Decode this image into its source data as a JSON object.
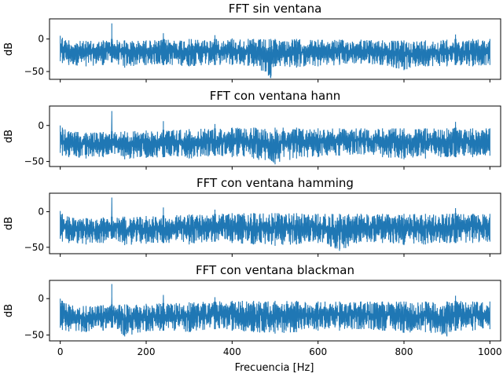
{
  "figure": {
    "xlabel": "Frecuencia [Hz]"
  },
  "chart_data": [
    {
      "type": "line",
      "title": "FFT sin ventana",
      "xlabel": "",
      "ylabel": "dB",
      "xlim": [
        -25,
        1025
      ],
      "ylim": [
        -62,
        31
      ],
      "x_ticks": [
        0,
        200,
        400,
        600,
        800,
        1000
      ],
      "y_ticks": [
        -50,
        0
      ],
      "grid": false,
      "color": "#1f77b4",
      "series": [
        {
          "x": [
            0,
            5,
            20,
            60,
            100,
            119,
            120,
            121,
            150,
            200,
            239,
            240,
            241,
            300,
            359,
            360,
            361,
            400,
            450,
            490,
            500,
            550,
            600,
            650,
            700,
            750,
            800,
            850,
            900,
            919,
            920,
            921,
            960,
            1000
          ],
          "upper": [
            5,
            2,
            -2,
            -3,
            -2,
            0,
            24,
            0,
            -2,
            -2,
            -1,
            9,
            0,
            0,
            0,
            6,
            0,
            1,
            0,
            0,
            0,
            0,
            -1,
            -1,
            -1,
            -2,
            -2,
            -2,
            -1,
            0,
            7,
            0,
            0,
            0
          ],
          "lower": [
            -34,
            -37,
            -40,
            -42,
            -40,
            -36,
            -30,
            -36,
            -44,
            -40,
            -40,
            -34,
            -40,
            -42,
            -40,
            -40,
            -40,
            -40,
            -42,
            -60,
            -42,
            -44,
            -42,
            -40,
            -38,
            -40,
            -48,
            -42,
            -42,
            -40,
            -38,
            -40,
            -42,
            -40
          ]
        }
      ]
    },
    {
      "type": "line",
      "title": "FFT con ventana hann",
      "xlabel": "",
      "ylabel": "dB",
      "xlim": [
        -25,
        1025
      ],
      "ylim": [
        -57,
        27
      ],
      "x_ticks": [
        0,
        200,
        400,
        600,
        800,
        1000
      ],
      "y_ticks": [
        -50,
        0
      ],
      "grid": false,
      "color": "#1f77b4",
      "series": [
        {
          "x": [
            0,
            5,
            20,
            60,
            100,
            119,
            120,
            121,
            150,
            200,
            239,
            240,
            241,
            300,
            359,
            360,
            361,
            400,
            450,
            500,
            550,
            600,
            650,
            700,
            750,
            800,
            850,
            900,
            919,
            920,
            921,
            960,
            1000
          ],
          "upper": [
            0,
            -3,
            -8,
            -10,
            -9,
            -8,
            20,
            -8,
            -8,
            -7,
            -6,
            6,
            -6,
            -5,
            -4,
            2,
            -4,
            -3,
            -3,
            -3,
            -3,
            -4,
            -4,
            -4,
            -4,
            -4,
            -4,
            -4,
            -3,
            5,
            -3,
            -4,
            -4
          ],
          "lower": [
            -38,
            -42,
            -44,
            -46,
            -44,
            -38,
            -30,
            -38,
            -47,
            -45,
            -44,
            -36,
            -44,
            -46,
            -42,
            -40,
            -42,
            -44,
            -46,
            -54,
            -46,
            -44,
            -42,
            -40,
            -44,
            -47,
            -46,
            -44,
            -44,
            -40,
            -44,
            -44,
            -42
          ]
        }
      ]
    },
    {
      "type": "line",
      "title": "FFT con ventana hamming",
      "xlabel": "",
      "ylabel": "dB",
      "xlim": [
        -25,
        1025
      ],
      "ylim": [
        -59,
        26
      ],
      "x_ticks": [
        0,
        200,
        400,
        600,
        800,
        1000
      ],
      "y_ticks": [
        -50,
        0
      ],
      "grid": false,
      "color": "#1f77b4",
      "series": [
        {
          "x": [
            0,
            5,
            20,
            60,
            100,
            119,
            120,
            121,
            150,
            200,
            239,
            240,
            241,
            300,
            359,
            360,
            361,
            400,
            450,
            500,
            550,
            600,
            650,
            700,
            750,
            800,
            850,
            900,
            919,
            920,
            921,
            960,
            1000
          ],
          "upper": [
            1,
            -3,
            -7,
            -9,
            -8,
            -7,
            20,
            -7,
            -7,
            -6,
            -5,
            6,
            -5,
            -4,
            -3,
            3,
            -3,
            -2,
            -2,
            -2,
            -2,
            -3,
            -3,
            -3,
            -3,
            -3,
            -3,
            -3,
            -2,
            5,
            -2,
            -3,
            -3
          ],
          "lower": [
            -38,
            -42,
            -44,
            -46,
            -44,
            -38,
            -30,
            -38,
            -47,
            -45,
            -44,
            -36,
            -44,
            -46,
            -42,
            -40,
            -42,
            -44,
            -46,
            -48,
            -46,
            -44,
            -55,
            -42,
            -44,
            -47,
            -46,
            -44,
            -44,
            -40,
            -44,
            -44,
            -42
          ]
        }
      ]
    },
    {
      "type": "line",
      "title": "FFT con ventana blackman",
      "xlabel": "Frecuencia [Hz]",
      "ylabel": "dB",
      "xlim": [
        -25,
        1025
      ],
      "ylim": [
        -58,
        25
      ],
      "x_ticks": [
        0,
        200,
        400,
        600,
        800,
        1000
      ],
      "y_ticks": [
        -50,
        0
      ],
      "grid": false,
      "color": "#1f77b4",
      "series": [
        {
          "x": [
            0,
            5,
            20,
            60,
            100,
            119,
            120,
            121,
            150,
            200,
            239,
            240,
            241,
            300,
            359,
            360,
            361,
            400,
            450,
            500,
            550,
            600,
            650,
            700,
            750,
            800,
            850,
            900,
            919,
            920,
            921,
            960,
            1000
          ],
          "upper": [
            0,
            -3,
            -8,
            -10,
            -9,
            -8,
            20,
            -8,
            -8,
            -7,
            -6,
            5,
            -6,
            -5,
            -4,
            2,
            -4,
            -3,
            -3,
            -3,
            -3,
            -4,
            -4,
            -4,
            -4,
            -4,
            -4,
            -4,
            -3,
            4,
            -3,
            -4,
            -4
          ],
          "lower": [
            -40,
            -43,
            -45,
            -46,
            -44,
            -40,
            -32,
            -40,
            -52,
            -45,
            -44,
            -38,
            -44,
            -46,
            -42,
            -40,
            -42,
            -44,
            -46,
            -48,
            -46,
            -44,
            -44,
            -42,
            -44,
            -47,
            -46,
            -52,
            -44,
            -40,
            -44,
            -44,
            -42
          ]
        }
      ]
    }
  ]
}
